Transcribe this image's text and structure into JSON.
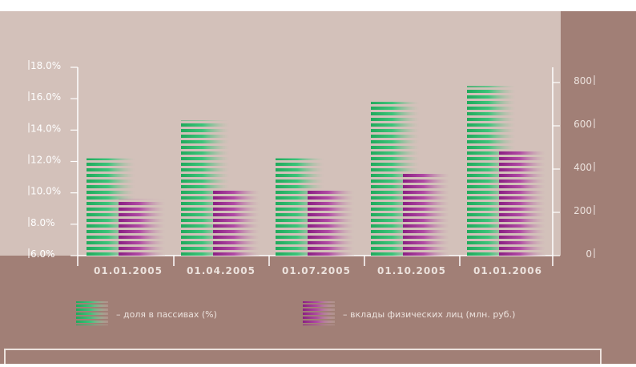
{
  "chart_data": {
    "type": "bar",
    "categories": [
      "01.01.2005",
      "01.04.2005",
      "01.07.2005",
      "01.10.2005",
      "01.01.2006"
    ],
    "series": [
      {
        "name": "– доля в пассивах (%)",
        "axis": "left",
        "values": [
          12.2,
          14.6,
          12.2,
          15.8,
          16.8
        ],
        "color": "#2db36b"
      },
      {
        "name": "– вклады физических лиц (млн. руб.)",
        "axis": "right",
        "values": [
          260,
          300,
          300,
          380,
          485
        ],
        "color": "#9a2a8e"
      }
    ],
    "y_left": {
      "ticks": [
        "6.0%",
        "8.0%",
        "10.0%",
        "12.0%",
        "14.0%",
        "16.0%",
        "18.0%"
      ],
      "range": [
        6,
        18
      ]
    },
    "y_right": {
      "ticks": [
        "0",
        "200",
        "400",
        "600",
        "800"
      ],
      "range": [
        0,
        800
      ]
    },
    "legend_position": "bottom",
    "colors": {
      "plot_bg": "#d3c1ba",
      "band": "#a17f76",
      "light_text": "#ece2dd",
      "axis_line": "#ffffff"
    }
  }
}
